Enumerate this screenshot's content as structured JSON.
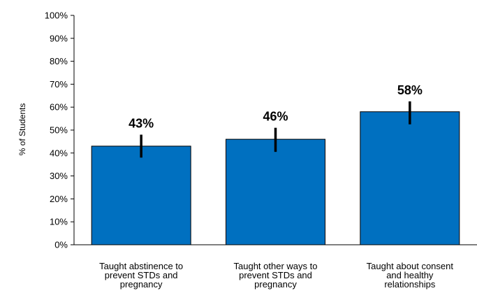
{
  "chart_data": {
    "type": "bar",
    "title": "",
    "xlabel": "",
    "ylabel": "% of Students",
    "ylim": [
      0,
      100
    ],
    "yticks": [
      "0%",
      "10%",
      "20%",
      "30%",
      "40%",
      "50%",
      "60%",
      "70%",
      "80%",
      "90%",
      "100%"
    ],
    "categories": [
      [
        "Taught abstinence to",
        "prevent STDs and",
        "pregnancy"
      ],
      [
        "Taught other ways to",
        "prevent STDs and",
        "pregnancy"
      ],
      [
        "Taught about consent",
        "and healthy",
        "relationships"
      ]
    ],
    "values": [
      43,
      46,
      58
    ],
    "data_labels": [
      "43%",
      "46%",
      "58%"
    ],
    "error_low": [
      38,
      40.5,
      52.5
    ],
    "error_high": [
      48,
      51,
      62.5
    ],
    "bar_color": "#0070c0",
    "error_bar_color": "#000000",
    "grid": false,
    "legend": "none"
  }
}
